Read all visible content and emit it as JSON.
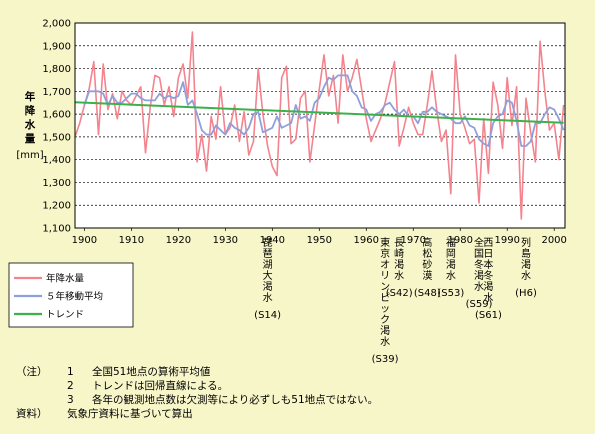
{
  "chart_data": {
    "type": "line",
    "title": "",
    "ylabel": "年降水量",
    "yunit": "[mm]",
    "xlabel": "",
    "xlim": [
      1900,
      2002
    ],
    "ylim": [
      1100,
      2000
    ],
    "x_ticks": [
      "1900",
      "1910",
      "1920",
      "1930",
      "1940",
      "1950",
      "1960",
      "1970",
      "1980",
      "1990",
      "2000"
    ],
    "y_ticks": [
      "1,100",
      "1,200",
      "1,300",
      "1,400",
      "1,500",
      "1,600",
      "1,700",
      "1,800",
      "1,900",
      "2,000"
    ],
    "grid": "horizontal dashed",
    "legend_position": "bottom-left below plot",
    "series": [
      {
        "name": "年降水量",
        "color": "#f4838e",
        "x": [
          1898,
          1899,
          1900,
          1901,
          1902,
          1903,
          1904,
          1905,
          1906,
          1907,
          1908,
          1909,
          1910,
          1911,
          1912,
          1913,
          1914,
          1915,
          1916,
          1917,
          1918,
          1919,
          1920,
          1921,
          1922,
          1923,
          1924,
          1925,
          1926,
          1927,
          1928,
          1929,
          1930,
          1931,
          1932,
          1933,
          1934,
          1935,
          1936,
          1937,
          1938,
          1939,
          1940,
          1941,
          1942,
          1943,
          1944,
          1945,
          1946,
          1947,
          1948,
          1949,
          1950,
          1951,
          1952,
          1953,
          1954,
          1955,
          1956,
          1957,
          1958,
          1959,
          1960,
          1961,
          1962,
          1963,
          1964,
          1965,
          1966,
          1967,
          1968,
          1969,
          1970,
          1971,
          1972,
          1973,
          1974,
          1975,
          1976,
          1977,
          1978,
          1979,
          1980,
          1981,
          1982,
          1983,
          1984,
          1985,
          1986,
          1987,
          1988,
          1989,
          1990,
          1991,
          1992,
          1993,
          1994,
          1995,
          1996,
          1997,
          1998,
          1999,
          2000,
          2001,
          2002
        ],
        "values": [
          1500,
          1560,
          1640,
          1710,
          1830,
          1510,
          1820,
          1620,
          1690,
          1580,
          1700,
          1660,
          1640,
          1680,
          1720,
          1430,
          1630,
          1770,
          1760,
          1640,
          1720,
          1590,
          1760,
          1820,
          1670,
          1960,
          1390,
          1510,
          1350,
          1590,
          1490,
          1720,
          1510,
          1540,
          1640,
          1480,
          1610,
          1420,
          1480,
          1800,
          1600,
          1460,
          1370,
          1330,
          1760,
          1810,
          1470,
          1490,
          1670,
          1700,
          1390,
          1550,
          1710,
          1860,
          1680,
          1770,
          1560,
          1860,
          1700,
          1760,
          1840,
          1710,
          1580,
          1480,
          1530,
          1580,
          1650,
          1740,
          1830,
          1460,
          1540,
          1630,
          1560,
          1510,
          1510,
          1640,
          1790,
          1620,
          1480,
          1530,
          1250,
          1860,
          1600,
          1540,
          1470,
          1490,
          1210,
          1580,
          1340,
          1740,
          1640,
          1450,
          1760,
          1550,
          1720,
          1140,
          1670,
          1520,
          1390,
          1920,
          1700,
          1530,
          1560,
          1400,
          1640
        ]
      },
      {
        "name": "５年移動平均",
        "color": "#8ea0dc",
        "x": [
          1900,
          1901,
          1902,
          1903,
          1904,
          1905,
          1906,
          1907,
          1908,
          1909,
          1910,
          1911,
          1912,
          1913,
          1914,
          1915,
          1916,
          1917,
          1918,
          1919,
          1920,
          1921,
          1922,
          1923,
          1924,
          1925,
          1926,
          1927,
          1928,
          1929,
          1930,
          1931,
          1932,
          1933,
          1934,
          1935,
          1936,
          1937,
          1938,
          1939,
          1940,
          1941,
          1942,
          1943,
          1944,
          1945,
          1946,
          1947,
          1948,
          1949,
          1950,
          1951,
          1952,
          1953,
          1954,
          1955,
          1956,
          1957,
          1958,
          1959,
          1960,
          1961,
          1962,
          1963,
          1964,
          1965,
          1966,
          1967,
          1968,
          1969,
          1970,
          1971,
          1972,
          1973,
          1974,
          1975,
          1976,
          1977,
          1978,
          1979,
          1980,
          1981,
          1982,
          1983,
          1984,
          1985,
          1986,
          1987,
          1988,
          1989,
          1990,
          1991,
          1992,
          1993,
          1994,
          1995,
          1996,
          1997,
          1998,
          1999,
          2000,
          2001,
          2002
        ],
        "values": [
          1640,
          1700,
          1700,
          1700,
          1690,
          1640,
          1680,
          1650,
          1650,
          1670,
          1690,
          1690,
          1670,
          1660,
          1660,
          1660,
          1690,
          1670,
          1680,
          1670,
          1680,
          1740,
          1640,
          1660,
          1600,
          1530,
          1510,
          1510,
          1550,
          1530,
          1510,
          1560,
          1540,
          1530,
          1510,
          1540,
          1600,
          1610,
          1520,
          1530,
          1540,
          1590,
          1540,
          1550,
          1560,
          1640,
          1580,
          1590,
          1570,
          1650,
          1670,
          1720,
          1760,
          1750,
          1770,
          1770,
          1770,
          1700,
          1680,
          1630,
          1620,
          1570,
          1600,
          1610,
          1640,
          1650,
          1620,
          1600,
          1620,
          1590,
          1590,
          1560,
          1610,
          1610,
          1630,
          1610,
          1600,
          1590,
          1580,
          1560,
          1560,
          1590,
          1550,
          1540,
          1490,
          1470,
          1460,
          1560,
          1590,
          1600,
          1660,
          1650,
          1570,
          1460,
          1460,
          1480,
          1560,
          1560,
          1600,
          1630,
          1620,
          1580,
          1530
        ]
      },
      {
        "name": "トレンド",
        "color": "#3db149",
        "x": [
          1898,
          2002
        ],
        "values": [
          1652,
          1562
        ]
      }
    ],
    "events": [
      {
        "x": 1939,
        "text": "琵琶湖大渇水",
        "year": "(S14)"
      },
      {
        "x": 1964,
        "text": "東京オリンピック渇水",
        "year": "(S39)"
      },
      {
        "x": 1967,
        "text": "長崎渇水",
        "year": "(S42)"
      },
      {
        "x": 1973,
        "text": "高松砂漠",
        "year": "(S48)"
      },
      {
        "x": 1978,
        "text": "福岡渇水",
        "year": "(S53)"
      },
      {
        "x": 1984,
        "text": "全国冬渇水",
        "year": "(S59)"
      },
      {
        "x": 1986,
        "text": "西日本冬渇水",
        "year": "(S61)"
      },
      {
        "x": 1994,
        "text": "列島渇水",
        "year": "(H6)"
      }
    ]
  },
  "notes": {
    "n_label": "（注）",
    "n1_num": "1",
    "n1_text": "全国51地点の算術平均値",
    "n2_num": "2",
    "n2_text": "トレンドは回帰直線による。",
    "n3_num": "3",
    "n3_text": "各年の観測地点数は欠測等により必ずしも51地点ではない。",
    "source_label": "資料）",
    "source_text": "気象庁資料に基づいて算出"
  }
}
